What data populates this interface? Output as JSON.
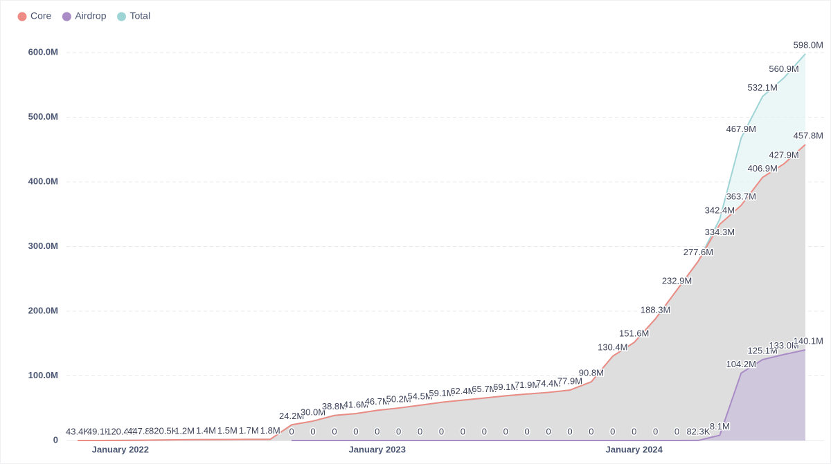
{
  "chart_data": {
    "type": "area",
    "x": [
      "2021-11",
      "2021-12",
      "2022-01",
      "2022-02",
      "2022-03",
      "2022-04",
      "2022-05",
      "2022-06",
      "2022-07",
      "2022-08",
      "2022-09",
      "2022-10",
      "2022-11",
      "2022-12",
      "2023-01",
      "2023-02",
      "2023-03",
      "2023-04",
      "2023-05",
      "2023-06",
      "2023-07",
      "2023-08",
      "2023-09",
      "2023-10",
      "2023-11",
      "2023-12",
      "2024-01",
      "2024-02",
      "2024-03",
      "2024-04",
      "2024-05",
      "2024-06",
      "2024-07",
      "2024-08",
      "2024-09"
    ],
    "xticks": [
      {
        "value": "2022-01",
        "label": "January 2022"
      },
      {
        "value": "2023-01",
        "label": "January 2023"
      },
      {
        "value": "2024-01",
        "label": "January 2024"
      }
    ],
    "ylim": [
      0,
      600
    ],
    "yticks": [
      0,
      {
        "value": 100,
        "label": "100.0M"
      },
      {
        "value": 200,
        "label": "200.0M"
      },
      {
        "value": 300,
        "label": "300.0M"
      },
      {
        "value": 400,
        "label": "400.0M"
      },
      {
        "value": 500,
        "label": "500.0M"
      },
      {
        "value": 600,
        "label": "600.0M"
      }
    ],
    "grid": true,
    "legend": "top-left",
    "series": [
      {
        "name": "Core",
        "color": "#ed8c84",
        "fill": "#d9d6d7",
        "values": [
          0.0434,
          0.0491,
          0.1204,
          0.4478,
          0.8205,
          1.2,
          1.4,
          1.5,
          1.7,
          1.8,
          24.2,
          30.0,
          38.8,
          41.6,
          46.7,
          50.2,
          54.5,
          59.1,
          62.4,
          65.7,
          69.1,
          71.9,
          74.4,
          77.9,
          90.8,
          130.4,
          151.6,
          188.3,
          232.9,
          277.5,
          334.3,
          363.7,
          406.9,
          427.9,
          457.8
        ],
        "value_labels": [
          null,
          null,
          null,
          null,
          null,
          null,
          null,
          null,
          null,
          null,
          null,
          null,
          null,
          null,
          null,
          null,
          null,
          null,
          null,
          null,
          null,
          null,
          null,
          null,
          null,
          null,
          null,
          null,
          null,
          null,
          "334.3M",
          "363.7M",
          "406.9M",
          "427.9M",
          "457.8M"
        ]
      },
      {
        "name": "Airdrop",
        "color": "#a98bc6",
        "fill": "#c9bfdb",
        "values": [
          null,
          null,
          null,
          null,
          null,
          null,
          null,
          null,
          null,
          null,
          0,
          0,
          0,
          0,
          0,
          0,
          0,
          0,
          0,
          0,
          0,
          0,
          0,
          0,
          0,
          0,
          0,
          0,
          0,
          0.0823,
          8.1,
          104.2,
          125.1,
          133.0,
          140.1
        ],
        "value_labels": [
          null,
          null,
          null,
          null,
          null,
          null,
          null,
          null,
          null,
          null,
          null,
          null,
          null,
          null,
          null,
          null,
          null,
          null,
          null,
          null,
          null,
          null,
          null,
          null,
          null,
          null,
          null,
          null,
          null,
          "82.3K",
          "8.1M",
          "104.2M",
          "125.1M",
          "133.0M",
          "140.1M"
        ]
      },
      {
        "name": "Total",
        "color": "#9fd4d6",
        "fill": "#e4f3f4",
        "values": [
          0.0434,
          0.0491,
          0.1204,
          0.4478,
          0.8205,
          1.2,
          1.4,
          1.5,
          1.7,
          1.8,
          24.2,
          30.0,
          38.8,
          41.6,
          46.7,
          50.2,
          54.5,
          59.1,
          62.4,
          65.7,
          69.1,
          71.9,
          74.4,
          77.9,
          90.8,
          130.4,
          151.6,
          188.3,
          232.9,
          277.6,
          342.4,
          467.9,
          532.1,
          560.9,
          598.0
        ],
        "value_labels": [
          "43.4K",
          "49.1K",
          "120.4K",
          "447.8K",
          "820.5K",
          "1.2M",
          "1.4M",
          "1.5M",
          "1.7M",
          "1.8M",
          "24.2M",
          "30.0M",
          "38.8M",
          "41.6M",
          "46.7M",
          "50.2M",
          "54.5M",
          "59.1M",
          "62.4M",
          "65.7M",
          "69.1M",
          "71.9M",
          "74.4M",
          "77.9M",
          "90.8M",
          "130.4M",
          "151.6M",
          "188.3M",
          "232.9M",
          "277.6M",
          "342.4M",
          "467.9M",
          "532.1M",
          "560.9M",
          "598.0M"
        ]
      }
    ]
  }
}
